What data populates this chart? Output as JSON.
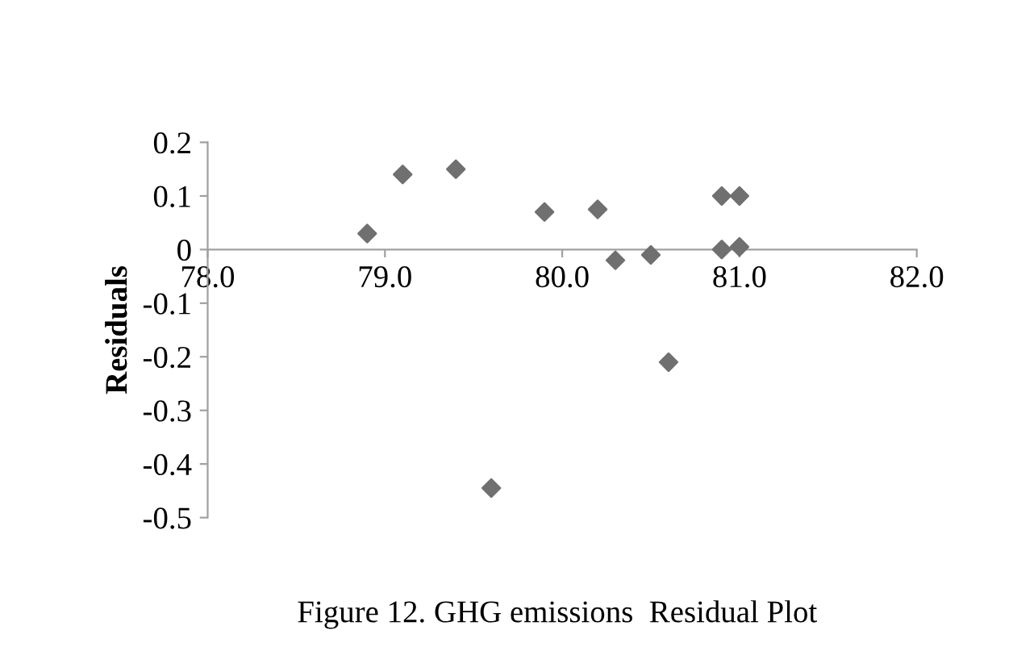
{
  "chart_data": {
    "type": "scatter",
    "title": "Figure 12. GHG emissions  Residual Plot",
    "ylabel": "Residuals",
    "x": [
      78.9,
      79.1,
      79.4,
      79.6,
      79.9,
      80.2,
      80.3,
      80.5,
      80.6,
      80.9,
      81.0,
      80.9,
      81.0
    ],
    "series": [
      {
        "color": "#707070",
        "values": [
          0.03,
          0.14,
          0.15,
          -0.445,
          0.07,
          0.075,
          -0.02,
          -0.01,
          -0.21,
          0.1,
          0.1,
          0.0,
          0.005
        ]
      }
    ],
    "marker": "diamond",
    "grid": false,
    "legend": false,
    "xlim": [
      78,
      82
    ],
    "xticks": [
      {
        "value": 78,
        "label": "78.0"
      },
      {
        "value": 79,
        "label": "79.0"
      },
      {
        "value": 80,
        "label": "80.0"
      },
      {
        "value": 81,
        "label": "81.0"
      },
      {
        "value": 82,
        "label": "82.0"
      }
    ],
    "ylim": [
      -0.5,
      0.2
    ],
    "yticks": [
      -0.5,
      -0.4,
      -0.3,
      -0.2,
      -0.1,
      0,
      0.1,
      0.2
    ]
  }
}
